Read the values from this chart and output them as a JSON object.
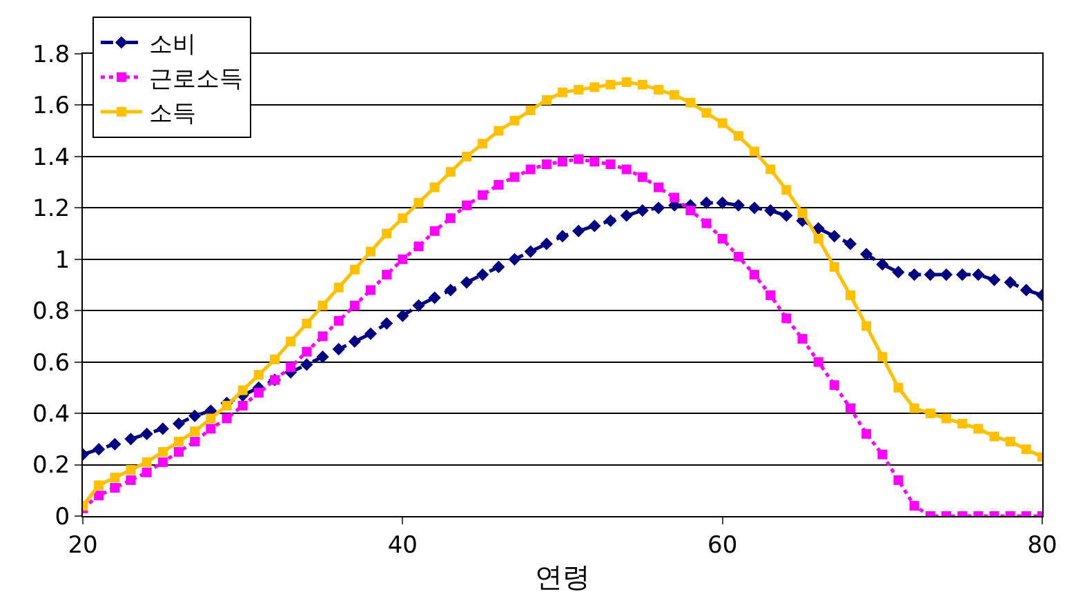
{
  "chart_data": {
    "type": "line",
    "xlabel": "연령",
    "x": [
      20,
      21,
      22,
      23,
      24,
      25,
      26,
      27,
      28,
      29,
      30,
      31,
      32,
      33,
      34,
      35,
      36,
      37,
      38,
      39,
      40,
      41,
      42,
      43,
      44,
      45,
      46,
      47,
      48,
      49,
      50,
      51,
      52,
      53,
      54,
      55,
      56,
      57,
      58,
      59,
      60,
      61,
      62,
      63,
      64,
      65,
      66,
      67,
      68,
      69,
      70,
      71,
      72,
      73,
      74,
      75,
      76,
      77,
      78,
      79,
      80
    ],
    "series": [
      {
        "name": "소비",
        "color": "#000080",
        "marker": "diamond",
        "line_style": "dashed",
        "values": [
          0.24,
          0.26,
          0.28,
          0.3,
          0.32,
          0.34,
          0.36,
          0.39,
          0.41,
          0.44,
          0.47,
          0.5,
          0.53,
          0.56,
          0.59,
          0.62,
          0.65,
          0.68,
          0.71,
          0.75,
          0.78,
          0.82,
          0.85,
          0.88,
          0.91,
          0.94,
          0.97,
          1.0,
          1.03,
          1.06,
          1.09,
          1.11,
          1.13,
          1.15,
          1.17,
          1.19,
          1.2,
          1.21,
          1.21,
          1.22,
          1.22,
          1.21,
          1.2,
          1.19,
          1.17,
          1.15,
          1.12,
          1.09,
          1.06,
          1.02,
          0.98,
          0.95,
          0.94,
          0.94,
          0.94,
          0.94,
          0.94,
          0.92,
          0.91,
          0.88,
          0.86
        ]
      },
      {
        "name": "근로소득",
        "color": "#ff00ff",
        "marker": "square",
        "line_style": "dotted",
        "values": [
          0.03,
          0.08,
          0.11,
          0.14,
          0.17,
          0.21,
          0.25,
          0.29,
          0.34,
          0.38,
          0.43,
          0.48,
          0.53,
          0.58,
          0.64,
          0.7,
          0.76,
          0.82,
          0.88,
          0.94,
          1.0,
          1.05,
          1.11,
          1.16,
          1.21,
          1.25,
          1.29,
          1.32,
          1.35,
          1.37,
          1.38,
          1.39,
          1.38,
          1.37,
          1.35,
          1.32,
          1.28,
          1.24,
          1.19,
          1.14,
          1.08,
          1.01,
          0.94,
          0.86,
          0.77,
          0.69,
          0.6,
          0.51,
          0.42,
          0.32,
          0.24,
          0.14,
          0.04,
          0,
          0,
          0,
          0,
          0,
          0,
          0,
          0
        ]
      },
      {
        "name": "소득",
        "color": "#ffc000",
        "marker": "square",
        "line_style": "solid",
        "values": [
          0.04,
          0.12,
          0.15,
          0.18,
          0.21,
          0.25,
          0.29,
          0.33,
          0.38,
          0.43,
          0.49,
          0.55,
          0.61,
          0.68,
          0.75,
          0.82,
          0.89,
          0.96,
          1.03,
          1.1,
          1.16,
          1.22,
          1.28,
          1.34,
          1.4,
          1.45,
          1.5,
          1.54,
          1.58,
          1.62,
          1.65,
          1.66,
          1.67,
          1.68,
          1.69,
          1.68,
          1.66,
          1.64,
          1.61,
          1.57,
          1.53,
          1.48,
          1.42,
          1.35,
          1.27,
          1.18,
          1.08,
          0.97,
          0.86,
          0.74,
          0.62,
          0.5,
          0.42,
          0.4,
          0.38,
          0.36,
          0.34,
          0.31,
          0.29,
          0.26,
          0.23
        ]
      }
    ],
    "xlim": [
      20,
      80
    ],
    "xticks": [
      20,
      40,
      60,
      80
    ],
    "ylim": [
      0,
      1.8
    ],
    "yticks": [
      0,
      0.2,
      0.4,
      0.6,
      0.8,
      1,
      1.2,
      1.4,
      1.6,
      1.8
    ],
    "grid": "y",
    "legend": "top left"
  }
}
